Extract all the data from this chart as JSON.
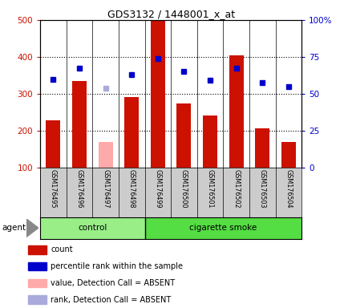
{
  "title": "GDS3132 / 1448001_x_at",
  "samples": [
    "GSM176495",
    "GSM176496",
    "GSM176497",
    "GSM176498",
    "GSM176499",
    "GSM176500",
    "GSM176501",
    "GSM176502",
    "GSM176503",
    "GSM176504"
  ],
  "counts": [
    228,
    335,
    null,
    292,
    497,
    275,
    242,
    405,
    208,
    170
  ],
  "absent_counts": [
    null,
    null,
    170,
    null,
    null,
    null,
    null,
    null,
    null,
    null
  ],
  "percentile_ranks": [
    340,
    370,
    null,
    353,
    395,
    360,
    337,
    370,
    330,
    320
  ],
  "absent_ranks": [
    null,
    null,
    315,
    null,
    null,
    null,
    null,
    null,
    null,
    null
  ],
  "groups": [
    "control",
    "control",
    "control",
    "control",
    "cigarette smoke",
    "cigarette smoke",
    "cigarette smoke",
    "cigarette smoke",
    "cigarette smoke",
    "cigarette smoke"
  ],
  "bar_color": "#cc1100",
  "absent_bar_color": "#ffaaaa",
  "dot_color": "#0000cc",
  "absent_dot_color": "#aaaadd",
  "ylim_left": [
    100,
    500
  ],
  "ylim_right": [
    0,
    100
  ],
  "right_ticks": [
    0,
    25,
    50,
    75,
    100
  ],
  "left_ticks": [
    100,
    200,
    300,
    400,
    500
  ],
  "dotted_lines": [
    200,
    300,
    400
  ],
  "left_tick_color": "#cc1100",
  "right_tick_color": "#0000cc",
  "agent_label": "agent",
  "control_color": "#99ee88",
  "smoke_color": "#55dd44",
  "name_bg_color": "#cccccc",
  "legend_items": [
    {
      "color": "#cc1100",
      "label": "count"
    },
    {
      "color": "#0000cc",
      "label": "percentile rank within the sample"
    },
    {
      "color": "#ffaaaa",
      "label": "value, Detection Call = ABSENT"
    },
    {
      "color": "#aaaadd",
      "label": "rank, Detection Call = ABSENT"
    }
  ]
}
